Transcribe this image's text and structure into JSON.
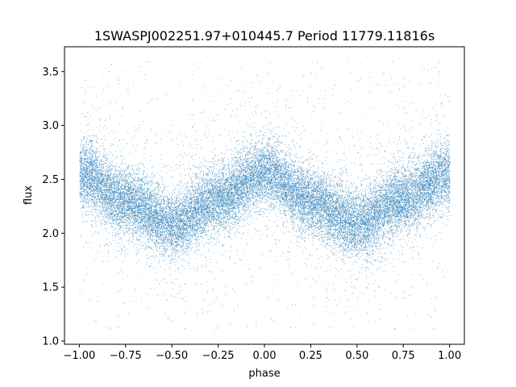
{
  "chart_data": {
    "type": "scatter",
    "title": "1SWASPJ002251.97+010445.7 Period 11779.11816s",
    "xlabel": "phase",
    "ylabel": "flux",
    "xlim": [
      -1.08,
      1.08
    ],
    "ylim": [
      0.97,
      3.73
    ],
    "x_ticks": [
      -1.0,
      -0.75,
      -0.5,
      -0.25,
      0.0,
      0.25,
      0.5,
      0.75,
      1.0
    ],
    "x_tick_labels": [
      "−1.00",
      "−0.75",
      "−0.50",
      "−0.25",
      "0.00",
      "0.25",
      "0.50",
      "0.75",
      "1.00"
    ],
    "y_ticks": [
      1.0,
      1.5,
      2.0,
      2.5,
      3.0,
      3.5
    ],
    "y_tick_labels": [
      "1.0",
      "1.5",
      "2.0",
      "2.5",
      "3.0",
      "3.5"
    ],
    "grid": false,
    "legend": "none",
    "marker_color": "#1f77b4",
    "series": [
      {
        "phase_range": [
          -1.0,
          1.0
        ],
        "profile": {
          "phase": [
            -1.0,
            -0.75,
            -0.5,
            -0.25,
            0.0,
            0.25,
            0.5,
            0.75,
            1.0
          ],
          "flux": [
            2.55,
            2.3,
            2.08,
            2.32,
            2.56,
            2.3,
            2.08,
            2.32,
            2.55
          ]
        },
        "scatter_sigma": 0.15,
        "outlier_flux_range": [
          1.1,
          3.6
        ],
        "n_points": 26000
      }
    ]
  }
}
